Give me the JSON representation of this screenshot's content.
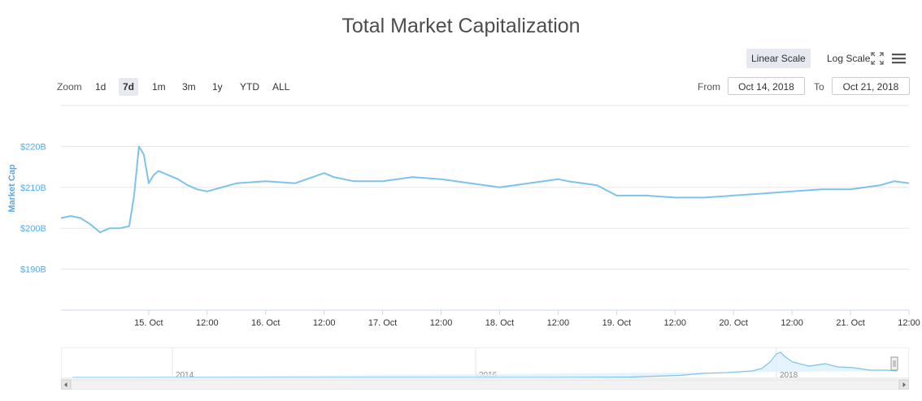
{
  "title": "Total Market Capitalization",
  "scale_buttons": {
    "linear": "Linear Scale",
    "log": "Log Scale"
  },
  "zoom": {
    "label": "Zoom",
    "buttons": [
      "1d",
      "7d",
      "1m",
      "3m",
      "1y",
      "YTD",
      "ALL"
    ],
    "selected": "7d"
  },
  "range": {
    "from_label": "From",
    "from_value": "Oct 14, 2018",
    "to_label": "To",
    "to_value": "Oct 21, 2018"
  },
  "icons": {
    "fullscreen": "fullscreen-icon",
    "menu": "hamburger-menu-icon",
    "left": "scroll-left-arrow-icon",
    "right": "scroll-right-arrow-icon"
  },
  "colors": {
    "series": "#7cc3ec",
    "axis_label": "#5aa9e6",
    "grid": "#e6e6e6"
  },
  "chart_data": {
    "type": "line",
    "title": "Total Market Capitalization",
    "ylabel": "Market Cap",
    "y_unit": "B",
    "yticks": [
      "$190B",
      "$200B",
      "$210B",
      "$220B"
    ],
    "ytick_values": [
      190,
      200,
      210,
      220
    ],
    "ylim": [
      180,
      230
    ],
    "x_domain": [
      "2018-10-14T06:00",
      "2018-10-21T12:00"
    ],
    "xticks": [
      "15. Oct",
      "12:00",
      "16. Oct",
      "12:00",
      "17. Oct",
      "12:00",
      "18. Oct",
      "12:00",
      "19. Oct",
      "12:00",
      "20. Oct",
      "12:00",
      "21. Oct",
      "12:00"
    ],
    "xtick_times": [
      "2018-10-15T00:00",
      "2018-10-15T12:00",
      "2018-10-16T00:00",
      "2018-10-16T12:00",
      "2018-10-17T00:00",
      "2018-10-17T12:00",
      "2018-10-18T00:00",
      "2018-10-18T12:00",
      "2018-10-19T00:00",
      "2018-10-19T12:00",
      "2018-10-20T00:00",
      "2018-10-20T12:00",
      "2018-10-21T00:00",
      "2018-10-21T12:00"
    ],
    "grid": true,
    "series": [
      {
        "x": [
          "2018-10-14T06:00",
          "2018-10-14T08:00",
          "2018-10-14T10:00",
          "2018-10-14T12:00",
          "2018-10-14T14:00",
          "2018-10-14T16:00",
          "2018-10-14T18:00",
          "2018-10-14T20:00",
          "2018-10-14T21:00",
          "2018-10-14T22:00",
          "2018-10-14T23:00",
          "2018-10-15T00:00",
          "2018-10-15T01:00",
          "2018-10-15T02:00",
          "2018-10-15T04:00",
          "2018-10-15T06:00",
          "2018-10-15T08:00",
          "2018-10-15T10:00",
          "2018-10-15T12:00",
          "2018-10-15T18:00",
          "2018-10-16T00:00",
          "2018-10-16T06:00",
          "2018-10-16T12:00",
          "2018-10-16T14:00",
          "2018-10-16T18:00",
          "2018-10-17T00:00",
          "2018-10-17T06:00",
          "2018-10-17T12:00",
          "2018-10-17T18:00",
          "2018-10-18T00:00",
          "2018-10-18T06:00",
          "2018-10-18T12:00",
          "2018-10-18T14:00",
          "2018-10-18T20:00",
          "2018-10-19T00:00",
          "2018-10-19T06:00",
          "2018-10-19T12:00",
          "2018-10-19T18:00",
          "2018-10-20T00:00",
          "2018-10-20T06:00",
          "2018-10-20T12:00",
          "2018-10-20T18:00",
          "2018-10-21T00:00",
          "2018-10-21T06:00",
          "2018-10-21T09:00",
          "2018-10-21T12:00"
        ],
        "y": [
          202.5,
          203.0,
          202.5,
          201.0,
          199.0,
          200.0,
          200.0,
          200.5,
          208.0,
          220.0,
          218.0,
          211.0,
          213.0,
          214.0,
          213.0,
          212.0,
          210.5,
          209.5,
          209.0,
          211.0,
          211.5,
          211.0,
          213.5,
          212.5,
          211.5,
          211.5,
          212.5,
          212.0,
          211.0,
          210.0,
          211.0,
          212.0,
          211.5,
          210.5,
          208.0,
          208.0,
          207.5,
          207.5,
          208.0,
          208.5,
          209.0,
          209.5,
          209.5,
          210.5,
          211.5,
          211.0
        ]
      }
    ],
    "navigator": {
      "labels": [
        "2014",
        "2016",
        "2018"
      ]
    }
  }
}
